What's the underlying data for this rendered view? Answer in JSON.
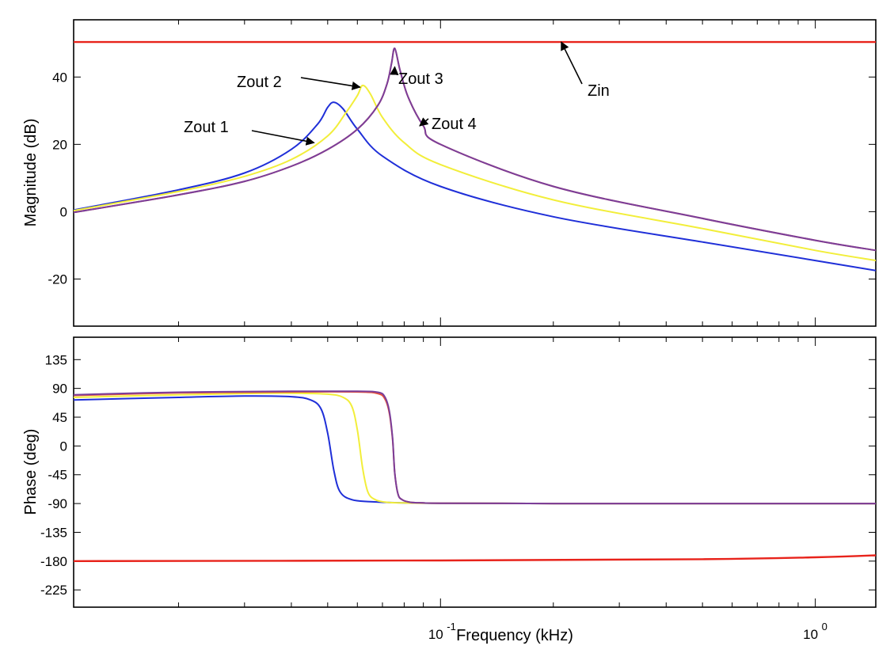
{
  "chart_data": [
    {
      "type": "line",
      "panel": "magnitude",
      "title": "",
      "xlabel": "",
      "ylabel": "Magnitude (dB)",
      "x_scale": "log",
      "xlim": [
        0.0105,
        1.45
      ],
      "ylim": [
        -34,
        57
      ],
      "yticks": [
        40,
        20,
        0,
        -20
      ],
      "ytick_labels": [
        "40",
        "20",
        "0",
        "-20"
      ],
      "grid": false,
      "colors": {
        "Zin": "#e8231b",
        "Zout 1": "#1f2fd8",
        "Zout 2": "#f2ee3a",
        "Zout 3": "#e8503a",
        "Zout 4": "#7a3e9a"
      },
      "series": [
        {
          "name": "Zin",
          "x": [
            0.0105,
            1.45
          ],
          "y": [
            50.4,
            50.4
          ]
        },
        {
          "name": "Zout 1",
          "x": [
            0.0105,
            0.02,
            0.03,
            0.04,
            0.047,
            0.05,
            0.052,
            0.055,
            0.06,
            0.07,
            0.1,
            0.2,
            0.5,
            1.0,
            1.45
          ],
          "y": [
            0.5,
            6.5,
            11.5,
            18.5,
            26.0,
            31.0,
            32.5,
            30.5,
            24.5,
            16.5,
            7.5,
            -1.5,
            -9.0,
            -14.5,
            -17.5
          ]
        },
        {
          "name": "Zout 2",
          "x": [
            0.0105,
            0.02,
            0.03,
            0.04,
            0.05,
            0.056,
            0.06,
            0.062,
            0.065,
            0.07,
            0.08,
            0.1,
            0.2,
            0.5,
            1.0,
            1.45
          ],
          "y": [
            0.3,
            6.0,
            10.5,
            15.5,
            22.5,
            29.5,
            34.5,
            37.5,
            35.0,
            28.0,
            20.5,
            14.0,
            3.5,
            -5.0,
            -11.5,
            -14.5
          ]
        },
        {
          "name": "Zout 3",
          "x": [
            0.0105,
            0.02,
            0.03,
            0.04,
            0.05,
            0.06,
            0.068,
            0.072,
            0.074,
            0.0755,
            0.078,
            0.082,
            0.09,
            0.1,
            0.2,
            0.5,
            1.0,
            1.45
          ],
          "y": [
            -0.2,
            5.0,
            9.0,
            13.5,
            18.5,
            24.5,
            31.5,
            38.0,
            44.0,
            48.5,
            42.0,
            34.0,
            25.5,
            20.0,
            7.5,
            -2.0,
            -8.5,
            -11.5
          ]
        },
        {
          "name": "Zout 4",
          "x": [
            0.0105,
            0.02,
            0.03,
            0.04,
            0.05,
            0.06,
            0.068,
            0.072,
            0.074,
            0.0755,
            0.078,
            0.082,
            0.09,
            0.1,
            0.2,
            0.5,
            1.0,
            1.45
          ],
          "y": [
            -0.2,
            5.0,
            9.0,
            13.5,
            18.5,
            24.5,
            31.5,
            38.0,
            44.0,
            48.5,
            42.0,
            34.0,
            25.5,
            20.0,
            7.5,
            -2.0,
            -8.5,
            -11.5
          ]
        }
      ],
      "annotations": [
        {
          "text": "Zout 1",
          "target": "Zout 1",
          "x": 0.046,
          "y": 20.5
        },
        {
          "text": "Zout 2",
          "target": "Zout 2",
          "x": 0.061,
          "y": 37.0
        },
        {
          "text": "Zout 3",
          "target": "Zout 3",
          "x": 0.0755,
          "y": 43.0
        },
        {
          "text": "Zout 4",
          "target": "Zout 4",
          "x": 0.088,
          "y": 25.5
        },
        {
          "text": "Zin",
          "target": "Zin",
          "x": 0.21,
          "y": 50.4
        }
      ]
    },
    {
      "type": "line",
      "panel": "phase",
      "title": "",
      "xlabel": "Frequency (kHz)",
      "ylabel": "Phase (deg)",
      "x_scale": "log",
      "xlim": [
        0.0105,
        1.45
      ],
      "ylim": [
        -252,
        170
      ],
      "xticks": [
        0.1,
        1.0
      ],
      "xtick_labels": [
        {
          "base": "10",
          "exp": "-1"
        },
        {
          "base": "10",
          "exp": "0"
        }
      ],
      "yticks": [
        135,
        90,
        45,
        0,
        -45,
        -90,
        -135,
        -180,
        -225
      ],
      "ytick_labels": [
        "135",
        "90",
        "45",
        "0",
        "-45",
        "-90",
        "-135",
        "-180",
        "-225"
      ],
      "grid": false,
      "colors": {
        "Zin": "#e8231b",
        "Zout 1": "#1f2fd8",
        "Zout 2": "#f2ee3a",
        "Zout 3": "#e8503a",
        "Zout 4": "#7a3e9a"
      },
      "series": [
        {
          "name": "Zin",
          "x": [
            0.0105,
            0.1,
            0.5,
            1.0,
            1.45
          ],
          "y": [
            -180,
            -179,
            -177,
            -174,
            -171
          ]
        },
        {
          "name": "Zout 1",
          "x": [
            0.0105,
            0.02,
            0.03,
            0.04,
            0.045,
            0.048,
            0.05,
            0.052,
            0.054,
            0.058,
            0.065,
            0.08,
            0.1,
            0.2,
            1.45
          ],
          "y": [
            72,
            76,
            78,
            77,
            72,
            58,
            20,
            -40,
            -72,
            -84,
            -87,
            -89,
            -89.5,
            -90,
            -90
          ]
        },
        {
          "name": "Zout 2",
          "x": [
            0.0105,
            0.02,
            0.03,
            0.04,
            0.05,
            0.055,
            0.058,
            0.06,
            0.062,
            0.064,
            0.067,
            0.072,
            0.08,
            0.1,
            0.2,
            1.45
          ],
          "y": [
            76,
            80,
            82,
            82.5,
            81,
            76,
            62,
            25,
            -35,
            -72,
            -84,
            -88,
            -89,
            -89.5,
            -90,
            -90
          ]
        },
        {
          "name": "Zout 3",
          "x": [
            0.0105,
            0.02,
            0.04,
            0.06,
            0.068,
            0.071,
            0.073,
            0.0745,
            0.0755,
            0.077,
            0.079,
            0.083,
            0.09,
            0.1,
            0.2,
            1.45
          ],
          "y": [
            79,
            83,
            84.5,
            84.5,
            82,
            74,
            52,
            10,
            -42,
            -75,
            -84,
            -88,
            -89,
            -89.5,
            -90,
            -90
          ]
        },
        {
          "name": "Zout 4",
          "x": [
            0.0105,
            0.02,
            0.04,
            0.06,
            0.068,
            0.071,
            0.073,
            0.0745,
            0.0755,
            0.077,
            0.079,
            0.083,
            0.09,
            0.1,
            0.2,
            1.45
          ],
          "y": [
            80,
            84,
            85.5,
            85.5,
            84,
            77,
            55,
            12,
            -42,
            -75,
            -84,
            -88,
            -89,
            -89.5,
            -90,
            -90
          ]
        }
      ],
      "annotations": []
    }
  ]
}
